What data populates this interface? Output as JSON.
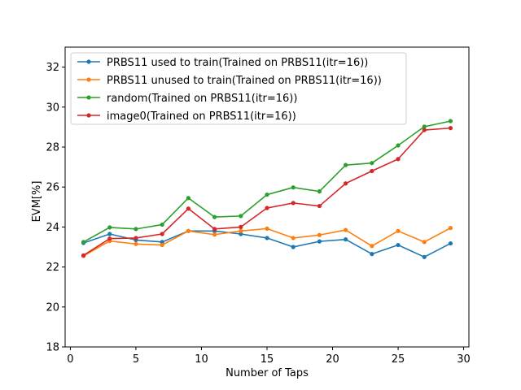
{
  "chart_data": {
    "type": "line",
    "title": "",
    "xlabel": "Number of Taps",
    "ylabel": "EVM[%]",
    "xlim": [
      -0.4,
      30.4
    ],
    "ylim": [
      18,
      33
    ],
    "xticks": [
      0,
      5,
      10,
      15,
      20,
      25,
      30
    ],
    "yticks": [
      18,
      20,
      22,
      24,
      26,
      28,
      30,
      32
    ],
    "grid": false,
    "legend_position": "top-left",
    "x": [
      1,
      3,
      5,
      7,
      9,
      11,
      13,
      15,
      17,
      19,
      21,
      23,
      25,
      27,
      29
    ],
    "series": [
      {
        "name": "PRBS11 used to train(Trained on PRBS11(itr=16))",
        "color": "#1f77b4",
        "values": [
          23.2,
          23.65,
          23.35,
          23.25,
          23.8,
          23.8,
          23.65,
          23.45,
          23.0,
          23.28,
          23.38,
          22.65,
          23.1,
          22.5,
          23.18
        ]
      },
      {
        "name": "PRBS11 unused to train(Trained on PRBS11(itr=16))",
        "color": "#ff7f0e",
        "values": [
          22.55,
          23.3,
          23.15,
          23.1,
          23.8,
          23.62,
          23.8,
          23.92,
          23.45,
          23.6,
          23.85,
          23.05,
          23.8,
          23.25,
          23.95
        ]
      },
      {
        "name": "random(Trained on PRBS11(itr=16))",
        "color": "#2ca02c",
        "values": [
          23.25,
          23.98,
          23.9,
          24.12,
          25.45,
          24.5,
          24.55,
          25.62,
          25.98,
          25.78,
          27.1,
          27.2,
          28.08,
          29.02,
          29.3
        ]
      },
      {
        "name": "image0(Trained on PRBS11(itr=16))",
        "color": "#d62728",
        "values": [
          22.58,
          23.42,
          23.45,
          23.65,
          24.92,
          23.9,
          24.0,
          24.95,
          25.2,
          25.05,
          26.18,
          26.8,
          27.4,
          28.85,
          28.95
        ]
      }
    ]
  }
}
